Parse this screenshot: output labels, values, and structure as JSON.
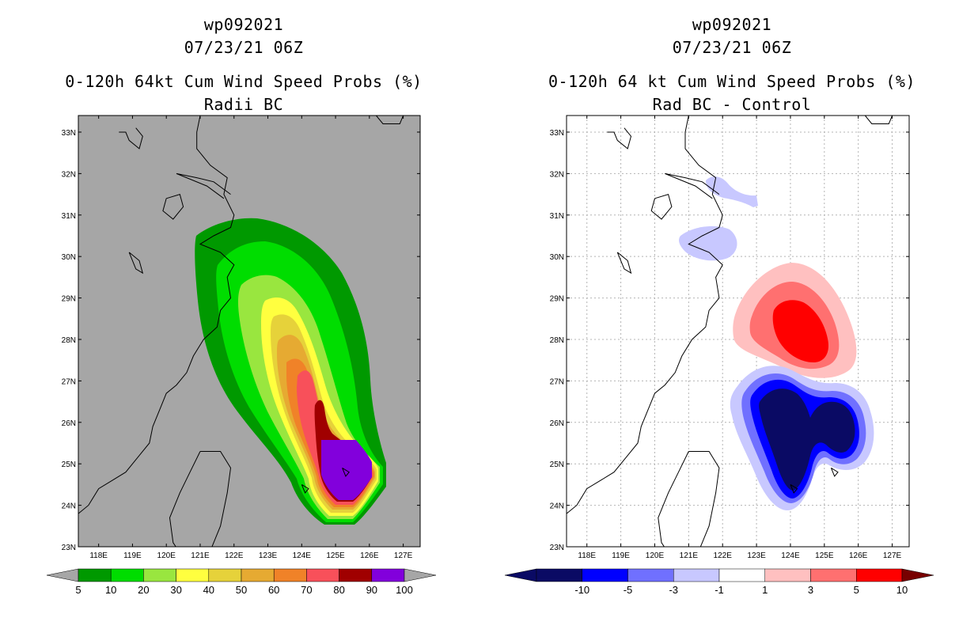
{
  "chart_data": [
    {
      "type": "heatmap",
      "id": "wp092021",
      "date": "07/23/21 06Z",
      "title": "0-120h 64kt Cum Wind Speed Probs (%)",
      "subtitle": "Radii BC",
      "xlabel": "",
      "ylabel": "",
      "x_ticks": [
        "118E",
        "119E",
        "120E",
        "121E",
        "122E",
        "123E",
        "124E",
        "125E",
        "126E",
        "127E"
      ],
      "y_ticks": [
        "33N",
        "32N",
        "31N",
        "30N",
        "29N",
        "28N",
        "27N",
        "26N",
        "25N",
        "24N",
        "23N"
      ],
      "xlim": [
        117.4,
        127.5
      ],
      "ylim": [
        23,
        33.4
      ],
      "colorbar": {
        "levels": [
          "5",
          "10",
          "20",
          "30",
          "40",
          "50",
          "60",
          "70",
          "80",
          "90",
          "100"
        ],
        "colors": [
          "#009900",
          "#00dd00",
          "#99e63f",
          "#ffff3f",
          "#e6d23a",
          "#e6aa32",
          "#f08228",
          "#f8505a",
          "#a00000",
          "#8200dc"
        ],
        "under_color": "#a6a6a6",
        "over_color": "#a6a6a6"
      },
      "contours": [
        {
          "level": 5,
          "center_lon": 123.6,
          "center_lat": 27.2
        },
        {
          "level": 10,
          "center_lon": 123.8,
          "center_lat": 27.0
        },
        {
          "level": 20,
          "center_lon": 124.0,
          "center_lat": 26.8
        },
        {
          "level": 30,
          "center_lon": 124.2,
          "center_lat": 26.5
        },
        {
          "level": 40,
          "center_lon": 124.4,
          "center_lat": 26.2
        },
        {
          "level": 50,
          "center_lon": 124.5,
          "center_lat": 26.0
        },
        {
          "level": 60,
          "center_lon": 124.6,
          "center_lat": 25.8
        },
        {
          "level": 70,
          "center_lon": 124.8,
          "center_lat": 25.5
        },
        {
          "level": 80,
          "center_lon": 125.0,
          "center_lat": 25.2
        },
        {
          "level": 90,
          "center_lon": 125.1,
          "center_lat": 24.9
        },
        {
          "level": 100,
          "center_lon": 125.0,
          "center_lat": 24.6
        }
      ]
    },
    {
      "type": "heatmap",
      "id": "wp092021",
      "date": "07/23/21 06Z",
      "title": "0-120h 64 kt Cum Wind Speed Probs (%)",
      "subtitle": "Rad BC - Control",
      "xlabel": "",
      "ylabel": "",
      "x_ticks": [
        "118E",
        "119E",
        "120E",
        "121E",
        "122E",
        "123E",
        "124E",
        "125E",
        "126E",
        "127E"
      ],
      "y_ticks": [
        "33N",
        "32N",
        "31N",
        "30N",
        "29N",
        "28N",
        "27N",
        "26N",
        "25N",
        "24N",
        "23N"
      ],
      "xlim": [
        117.4,
        127.5
      ],
      "ylim": [
        23,
        33.4
      ],
      "colorbar": {
        "levels": [
          "-10",
          "-5",
          "-3",
          "-1",
          "1",
          "3",
          "5",
          "10"
        ],
        "colors": [
          "#0a0a64",
          "#0000ff",
          "#7070ff",
          "#c8c8ff",
          "#ffffff",
          "#ffc0c0",
          "#ff7070",
          "#ff0000"
        ],
        "under_color": "#0a0a64",
        "over_color": "#780000"
      },
      "anomalies": [
        {
          "sign": "positive",
          "center_lon": 124.2,
          "center_lat": 28.3,
          "max": "5"
        },
        {
          "sign": "negative",
          "center_lon": 124.0,
          "center_lat": 26.0,
          "min": "-10"
        },
        {
          "sign": "negative",
          "center_lon": 125.4,
          "center_lat": 25.9,
          "min": "-10"
        },
        {
          "sign": "negative",
          "center_lon": 121.8,
          "center_lat": 30.4,
          "min": "-1"
        },
        {
          "sign": "negative",
          "center_lon": 122.4,
          "center_lat": 31.8,
          "min": "-1"
        }
      ]
    }
  ]
}
